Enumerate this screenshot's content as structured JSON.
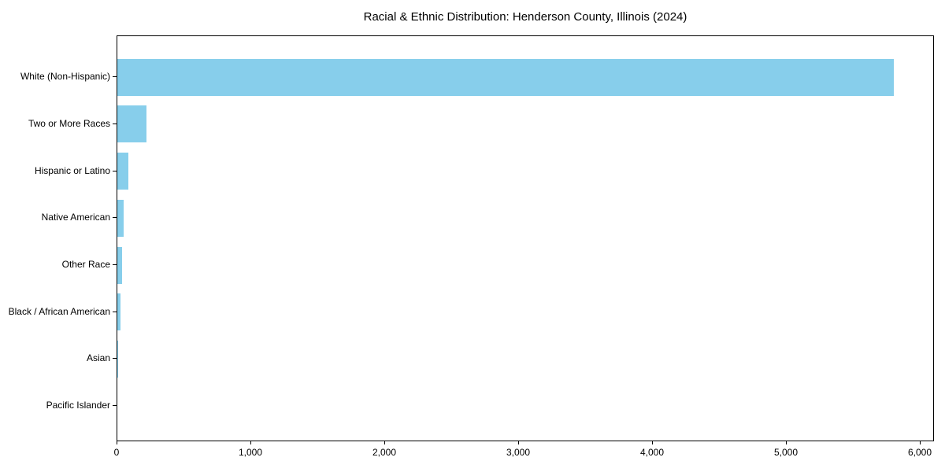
{
  "title": "Racial & Ethnic Distribution: Henderson County, Illinois (2024)",
  "chart_data": {
    "type": "bar",
    "orientation": "horizontal",
    "title": "Racial & Ethnic Distribution: Henderson County, Illinois (2024)",
    "categories": [
      "White (Non-Hispanic)",
      "Two or More Races",
      "Hispanic or Latino",
      "Native American",
      "Other Race",
      "Black / African American",
      "Asian",
      "Pacific Islander"
    ],
    "values": [
      5800,
      220,
      80,
      45,
      35,
      25,
      5,
      0
    ],
    "bar_color": "#87CEEB",
    "xlabel": "",
    "ylabel": "",
    "xlim": [
      0,
      6106
    ],
    "x_tick_values": [
      0,
      1000,
      2000,
      3000,
      4000,
      5000,
      6000
    ],
    "x_tick_labels": [
      "0",
      "1,000",
      "2,000",
      "3,000",
      "4,000",
      "5,000",
      "6,000"
    ],
    "grid": false,
    "legend": "none"
  }
}
